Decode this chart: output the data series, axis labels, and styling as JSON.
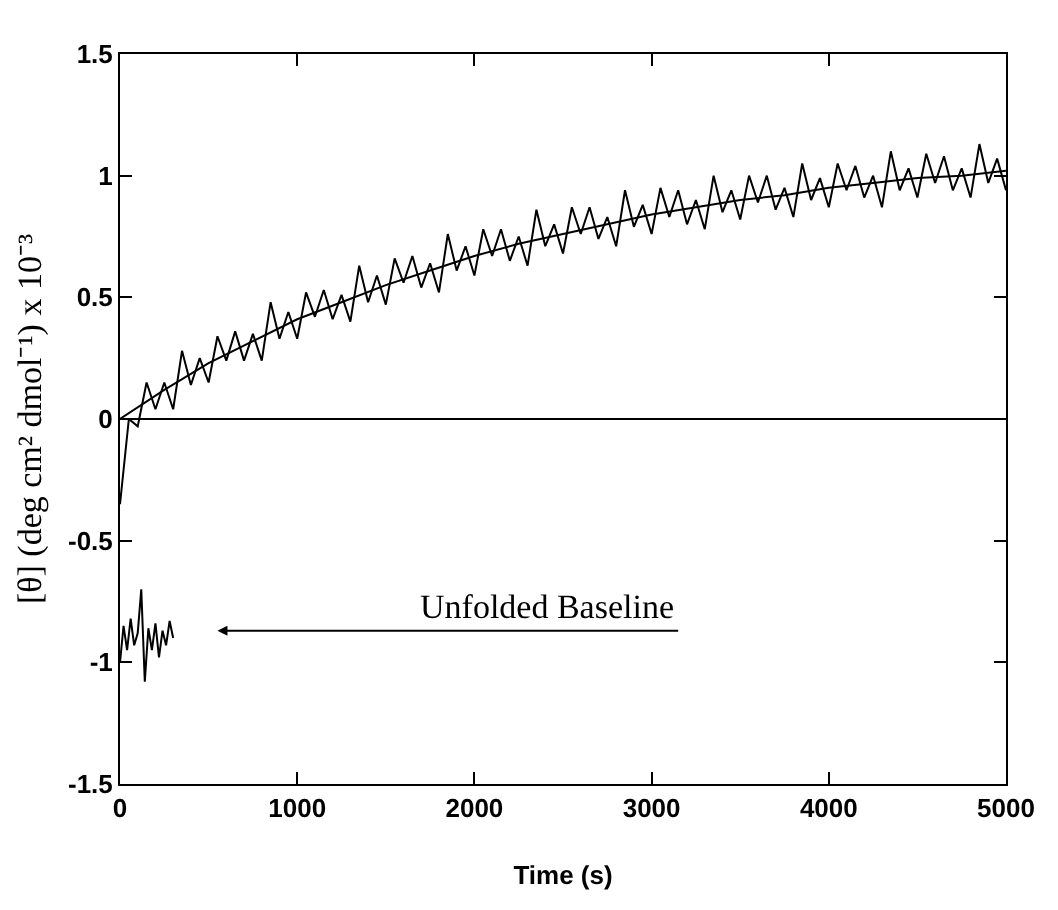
{
  "chart_data": {
    "type": "line",
    "xlabel": "Time (s)",
    "ylabel": "[θ] (deg cm² dmol⁻¹) x 10⁻³",
    "xlim": [
      0,
      5000
    ],
    "xticks": [
      0,
      1000,
      2000,
      3000,
      4000,
      5000
    ],
    "ylim": [
      -1.5,
      1.5
    ],
    "yticks": [
      -1.5,
      -1,
      -0.5,
      0,
      0.5,
      1,
      1.5
    ],
    "grid": false,
    "marker": "none",
    "line_style": "solid",
    "ref_lines": [
      {
        "axis": "y",
        "value": 0,
        "color": "#000000"
      }
    ],
    "annotations": [
      "Unfolded Baseline"
    ],
    "series": [
      {
        "color": "#000000",
        "x": [
          0,
          50,
          100,
          150,
          200,
          250,
          300,
          350,
          400,
          450,
          500,
          550,
          600,
          650,
          700,
          750,
          800,
          850,
          900,
          950,
          1000,
          1050,
          1100,
          1150,
          1200,
          1250,
          1300,
          1350,
          1400,
          1450,
          1500,
          1550,
          1600,
          1650,
          1700,
          1750,
          1800,
          1850,
          1900,
          1950,
          2000,
          2050,
          2100,
          2150,
          2200,
          2250,
          2300,
          2350,
          2400,
          2450,
          2500,
          2550,
          2600,
          2650,
          2700,
          2750,
          2800,
          2850,
          2900,
          2950,
          3000,
          3050,
          3100,
          3150,
          3200,
          3250,
          3300,
          3350,
          3400,
          3450,
          3500,
          3550,
          3600,
          3650,
          3700,
          3750,
          3800,
          3850,
          3900,
          3950,
          4000,
          4050,
          4100,
          4150,
          4200,
          4250,
          4300,
          4350,
          4400,
          4450,
          4500,
          4550,
          4600,
          4650,
          4700,
          4750,
          4800,
          4850,
          4900,
          4950,
          5000
        ],
        "values": [
          -0.35,
          0.0,
          -0.03,
          0.15,
          0.04,
          0.15,
          0.04,
          0.28,
          0.14,
          0.25,
          0.15,
          0.34,
          0.24,
          0.36,
          0.24,
          0.35,
          0.24,
          0.48,
          0.33,
          0.44,
          0.33,
          0.52,
          0.42,
          0.53,
          0.41,
          0.51,
          0.4,
          0.63,
          0.48,
          0.59,
          0.47,
          0.66,
          0.56,
          0.67,
          0.54,
          0.64,
          0.52,
          0.76,
          0.61,
          0.71,
          0.59,
          0.78,
          0.67,
          0.78,
          0.65,
          0.75,
          0.63,
          0.86,
          0.71,
          0.8,
          0.68,
          0.87,
          0.76,
          0.87,
          0.74,
          0.83,
          0.71,
          0.94,
          0.79,
          0.88,
          0.76,
          0.95,
          0.83,
          0.94,
          0.8,
          0.9,
          0.78,
          1.0,
          0.85,
          0.94,
          0.82,
          1.0,
          0.89,
          1.0,
          0.86,
          0.95,
          0.83,
          1.05,
          0.9,
          0.99,
          0.87,
          1.05,
          0.94,
          1.04,
          0.91,
          1.0,
          0.87,
          1.1,
          0.94,
          1.03,
          0.91,
          1.09,
          0.97,
          1.08,
          0.94,
          1.03,
          0.91,
          1.13,
          0.97,
          1.07,
          0.94
        ]
      },
      {
        "color": "#000000",
        "x": [
          0,
          250,
          500,
          750,
          1000,
          1250,
          1500,
          1750,
          2000,
          2250,
          2500,
          2750,
          3000,
          3250,
          3500,
          3750,
          4000,
          4250,
          4500,
          4750,
          5000
        ],
        "values": [
          0.0,
          0.12,
          0.23,
          0.32,
          0.41,
          0.48,
          0.55,
          0.61,
          0.67,
          0.72,
          0.76,
          0.8,
          0.84,
          0.87,
          0.9,
          0.92,
          0.95,
          0.97,
          0.99,
          1.0,
          1.02
        ]
      },
      {
        "color": "#000000",
        "x": [
          0,
          20,
          40,
          60,
          80,
          100,
          120,
          140,
          160,
          180,
          200,
          220,
          240,
          260,
          280,
          300
        ],
        "values": [
          -1.0,
          -0.85,
          -0.95,
          -0.82,
          -0.93,
          -0.88,
          -0.7,
          -1.08,
          -0.86,
          -0.95,
          -0.84,
          -0.98,
          -0.87,
          -0.93,
          -0.83,
          -0.9
        ]
      }
    ]
  }
}
